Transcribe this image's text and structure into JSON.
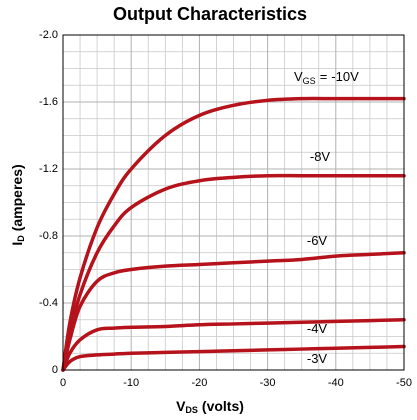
{
  "chart_data": {
    "type": "line",
    "title": "Output Characteristics",
    "x_label": {
      "symbol": "V",
      "subscript": "DS",
      "text": "(volts)"
    },
    "y_label": {
      "symbol": "I",
      "subscript": "D",
      "text": "(amperes)"
    },
    "series_label_prefix": {
      "symbol": "V",
      "subscript": "GS",
      "sign": "="
    },
    "x": [
      0,
      -1,
      -2.5,
      -5,
      -7.5,
      -10,
      -15,
      -20,
      -25,
      -30,
      -35,
      -40,
      -45,
      -50
    ],
    "series": [
      {
        "name": "-10V",
        "color": "#b5121b",
        "values": [
          0,
          -0.28,
          -0.55,
          -0.85,
          -1.05,
          -1.2,
          -1.4,
          -1.52,
          -1.58,
          -1.61,
          -1.62,
          -1.62,
          -1.62,
          -1.62
        ]
      },
      {
        "name": "-8V",
        "color": "#b5121b",
        "values": [
          0,
          -0.22,
          -0.45,
          -0.7,
          -0.86,
          -0.97,
          -1.08,
          -1.13,
          -1.15,
          -1.16,
          -1.16,
          -1.16,
          -1.16,
          -1.16
        ]
      },
      {
        "name": "-6V",
        "color": "#b5121b",
        "values": [
          0,
          -0.18,
          -0.38,
          -0.53,
          -0.58,
          -0.6,
          -0.62,
          -0.63,
          -0.64,
          -0.65,
          -0.66,
          -0.68,
          -0.69,
          -0.7
        ]
      },
      {
        "name": "-4V",
        "color": "#b5121b",
        "values": [
          0,
          -0.1,
          -0.18,
          -0.24,
          -0.25,
          -0.255,
          -0.26,
          -0.27,
          -0.275,
          -0.28,
          -0.285,
          -0.29,
          -0.295,
          -0.3
        ]
      },
      {
        "name": "-3V",
        "color": "#b5121b",
        "values": [
          0,
          -0.05,
          -0.08,
          -0.09,
          -0.095,
          -0.1,
          -0.105,
          -0.11,
          -0.115,
          -0.12,
          -0.125,
          -0.13,
          -0.135,
          -0.14
        ]
      }
    ],
    "xlim": [
      0,
      -50
    ],
    "xticks": [
      0,
      -10,
      -20,
      -30,
      -40,
      -50
    ],
    "ylim": [
      0,
      -2
    ],
    "yticks": [
      0,
      -0.4,
      -0.8,
      -1.2,
      -1.6,
      {
        "value": -2,
        "label": "-2.0"
      }
    ],
    "grid": true,
    "minor_grid": 4
  }
}
